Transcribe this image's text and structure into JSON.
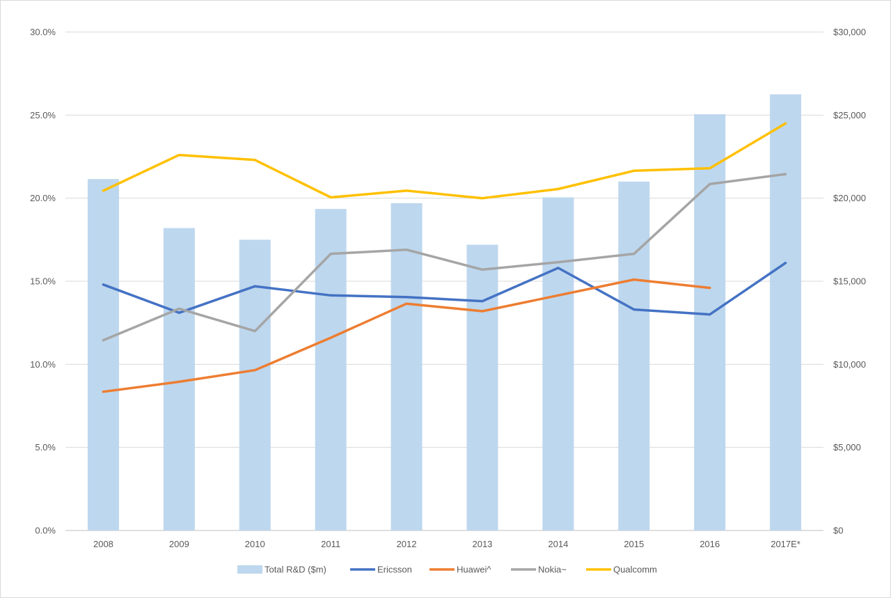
{
  "chart_data": {
    "type": "bar",
    "categories": [
      "2008",
      "2009",
      "2010",
      "2011",
      "2012",
      "2013",
      "2014",
      "2015",
      "2016",
      "2017E*"
    ],
    "bar_series": {
      "name": "Total R&D ($m)",
      "axis": "right",
      "color": "#bdd7ee",
      "values": [
        21150,
        18200,
        17500,
        19350,
        19700,
        17200,
        20050,
        21000,
        25050,
        26250
      ]
    },
    "line_series": [
      {
        "name": "Ericsson",
        "axis": "left",
        "color": "#4472c4",
        "values": [
          14.8,
          13.1,
          14.7,
          14.15,
          14.05,
          13.8,
          15.8,
          13.3,
          13.0,
          16.1
        ]
      },
      {
        "name": "Huawei^",
        "axis": "left",
        "color": "#ed7d31",
        "values": [
          8.35,
          8.95,
          9.65,
          11.6,
          13.65,
          13.2,
          14.15,
          15.1,
          14.6,
          null
        ]
      },
      {
        "name": "Nokia~",
        "axis": "left",
        "color": "#a5a5a5",
        "values": [
          11.45,
          13.35,
          12.0,
          16.65,
          16.9,
          15.7,
          16.15,
          16.65,
          20.85,
          21.45
        ]
      },
      {
        "name": "Qualcomm",
        "axis": "left",
        "color": "#ffc000",
        "values": [
          20.45,
          22.6,
          22.3,
          20.05,
          20.45,
          20.0,
          20.55,
          21.65,
          21.8,
          24.5
        ]
      }
    ],
    "left_axis": {
      "ylim": [
        0,
        30
      ],
      "ticks": [
        "0.0%",
        "5.0%",
        "10.0%",
        "15.0%",
        "20.0%",
        "25.0%",
        "30.0%"
      ]
    },
    "right_axis": {
      "ylim": [
        0,
        30000
      ],
      "ticks": [
        "$0",
        "$5,000",
        "$10,000",
        "$15,000",
        "$20,000",
        "$25,000",
        "$30,000"
      ]
    },
    "grid": true,
    "legend_position": "bottom",
    "legend": [
      "Total R&D ($m)",
      "Ericsson",
      "Huawei^",
      "Nokia~",
      "Qualcomm"
    ],
    "title": "",
    "xlabel": "",
    "ylabel": ""
  }
}
